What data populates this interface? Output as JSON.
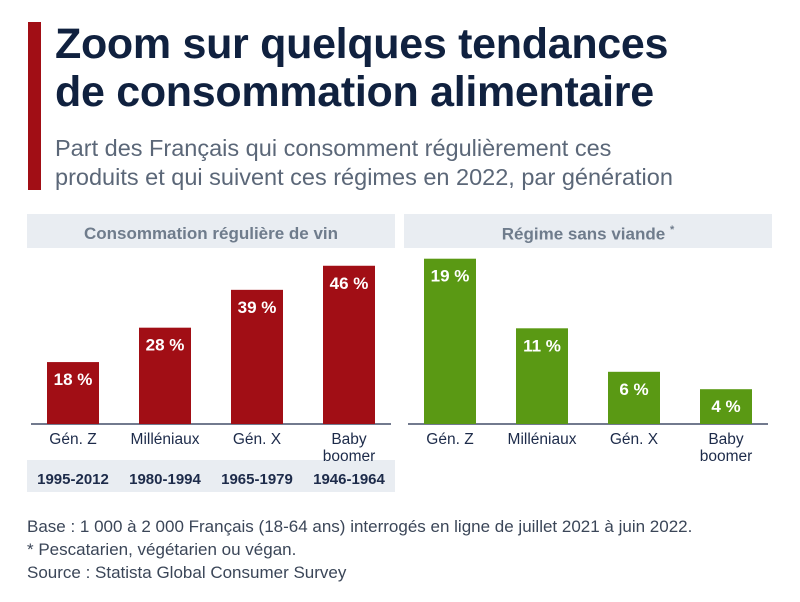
{
  "colors": {
    "accent": "#a10e15",
    "wine_bar": "#a10e15",
    "meat_free_bar": "#5a9914",
    "panel_bg": "#e9edf2",
    "title": "#10213f",
    "subtitle": "#5b6778"
  },
  "header": {
    "title_line1": "Zoom sur quelques tendances",
    "title_line2": "de consommation alimentaire",
    "subtitle_line1": "Part des Français qui consomment régulièrement ces",
    "subtitle_line2": "produits et qui suivent ces régimes en 2022, par génération"
  },
  "chart_data": [
    {
      "type": "bar",
      "title": "Consommation régulière de vin",
      "categories": [
        "Gén. Z",
        "Milléniaux",
        "Gén. X",
        "Baby boomer"
      ],
      "category_lines": [
        [
          "Gén. Z"
        ],
        [
          "Milléniaux"
        ],
        [
          "Gén. X"
        ],
        [
          "Baby",
          "boomer"
        ]
      ],
      "years": [
        "1995-2012",
        "1980-1994",
        "1965-1979",
        "1946-1964"
      ],
      "values": [
        18,
        28,
        39,
        46
      ],
      "value_labels": [
        "18 %",
        "28 %",
        "39 %",
        "46 %"
      ],
      "ylim": [
        0,
        50
      ],
      "grid": false
    },
    {
      "type": "bar",
      "title": "Régime sans viande",
      "title_mark": "*",
      "categories": [
        "Gén. Z",
        "Milléniaux",
        "Gén. X",
        "Baby boomer"
      ],
      "category_lines": [
        [
          "Gén. Z"
        ],
        [
          "Milléniaux"
        ],
        [
          "Gén. X"
        ],
        [
          "Baby",
          "boomer"
        ]
      ],
      "values": [
        19,
        11,
        6,
        4
      ],
      "value_labels": [
        "19 %",
        "11 %",
        "6 %",
        "4 %"
      ],
      "ylim": [
        0,
        20
      ],
      "grid": false
    }
  ],
  "footer": {
    "base": "Base : 1 000 à 2 000 Français (18-64 ans) interrogés en ligne de juillet 2021 à juin 2022.",
    "note": "* Pescatarien, végétarien ou végan.",
    "source": "Source : Statista Global Consumer Survey"
  }
}
